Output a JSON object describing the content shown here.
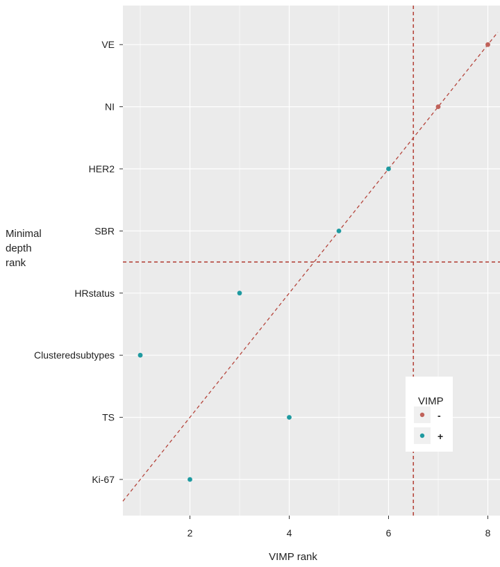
{
  "chart_data": {
    "type": "scatter",
    "title": "",
    "xlabel": "VIMP rank",
    "ylabel_lines": [
      "Minimal",
      "depth",
      "rank"
    ],
    "xlim": [
      0.65,
      8.2
    ],
    "x_ticks": [
      2,
      4,
      6,
      8
    ],
    "y_categories": [
      "Ki-67",
      "TS",
      "Clusteredsubtypes",
      "HRstatus",
      "SBR",
      "HER2",
      "NI",
      "VE"
    ],
    "points": [
      {
        "label": "VE",
        "x": 8,
        "y": 8,
        "vimp": "-"
      },
      {
        "label": "NI",
        "x": 7,
        "y": 7,
        "vimp": "-"
      },
      {
        "label": "HER2",
        "x": 6,
        "y": 6,
        "vimp": "+"
      },
      {
        "label": "SBR",
        "x": 5,
        "y": 5,
        "vimp": "+"
      },
      {
        "label": "HRstatus",
        "x": 3,
        "y": 4,
        "vimp": "+"
      },
      {
        "label": "Clusteredsubtypes",
        "x": 1,
        "y": 3,
        "vimp": "+"
      },
      {
        "label": "TS",
        "x": 4,
        "y": 2,
        "vimp": "+"
      },
      {
        "label": "Ki-67",
        "x": 2,
        "y": 1,
        "vimp": "+"
      }
    ],
    "reference_lines": {
      "diagonal": "y = x",
      "vertical_x": 6.5,
      "horizontal_y": 4.5
    },
    "legend": {
      "title": "VIMP",
      "entries": [
        {
          "key": "-",
          "label": "-",
          "color": "#c0625a"
        },
        {
          "key": "+",
          "label": "+",
          "color": "#1f9aa0"
        }
      ],
      "placement": "bottom-right"
    },
    "colors": {
      "panel": "#ebebeb",
      "grid": "#ffffff",
      "reference_line": "#b5453c"
    },
    "grid": true
  }
}
